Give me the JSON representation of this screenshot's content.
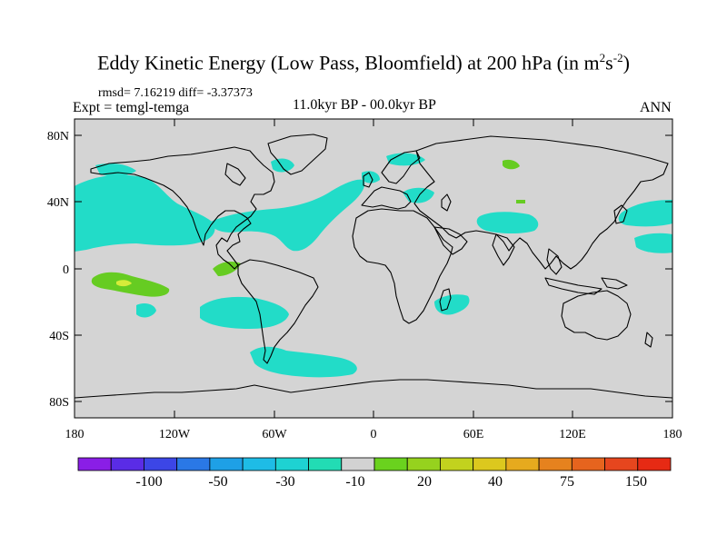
{
  "header": {
    "title_main": "Eddy Kinetic Energy (Low Pass, Bloomfield) at 200 hPa (in m",
    "title_exp1": "2",
    "title_mid": "s",
    "title_exp2": "-2",
    "title_end": ")",
    "stats": "rmsd= 7.16219 diff= -3.37373",
    "expt": "Expt = temgl-temga",
    "period": "11.0kyr BP - 00.0kyr BP",
    "season": "ANN"
  },
  "map": {
    "projection": "cylindrical-equidistant",
    "lon_range": [
      -180,
      180
    ],
    "lat_range": [
      -90,
      90
    ],
    "lat_ticks": [
      "80N",
      "40N",
      "0",
      "40S",
      "80S"
    ],
    "lon_ticks": [
      "180",
      "120W",
      "60W",
      "0",
      "60E",
      "120E",
      "180"
    ],
    "land_fill": "#d4d4d4",
    "anomaly_regions": [
      {
        "level": "-10 to -30",
        "color": "#22dcc8",
        "area": "North Pacific, 120W-180 at 20-45N"
      },
      {
        "level": "-10 to -30",
        "color": "#22dcc8",
        "area": "North Atlantic jet exit, 80W-10W at 20-45N"
      },
      {
        "level": "-10 to -30",
        "color": "#22dcc8",
        "area": "Central Asia, 60E-95E at 25-35N"
      },
      {
        "level": "-10 to -30",
        "color": "#22dcc8",
        "area": "South Pacific, 100W-60W at 20-35S"
      },
      {
        "level": "-10 to -30",
        "color": "#22dcc8",
        "area": "Southern Ocean, 70W-10W at 45-60S"
      },
      {
        "level": "-10 to -30",
        "color": "#22dcc8",
        "area": "Mozambique Channel, 40E-60E at 15-25S"
      },
      {
        "level": "20 to 30",
        "color": "#66cc22",
        "area": "Tropical Pacific, 175W-130W at 5-15S"
      },
      {
        "level": "20 to 30",
        "color": "#66cc22",
        "area": "Eastern equatorial Pacific, 90W-80W at 0-5N"
      },
      {
        "level": "20 to 30",
        "color": "#66cc22",
        "area": "Siberia, 80E-90E at 62-68N"
      }
    ]
  },
  "colorbar": {
    "colors": [
      "#8a1ee6",
      "#5a2ce6",
      "#3c46e6",
      "#2a78e6",
      "#1ea0e6",
      "#1ebce6",
      "#1ed2d2",
      "#22dcb4",
      "#d2d2d2",
      "#6ad21e",
      "#96d21e",
      "#c2d21e",
      "#dcc81e",
      "#e6aa1e",
      "#e6821e",
      "#e6641e",
      "#e6461e",
      "#e62a14"
    ],
    "labels": [
      "-100",
      "-50",
      "-30",
      "-10",
      "20",
      "40",
      "75",
      "150"
    ]
  }
}
